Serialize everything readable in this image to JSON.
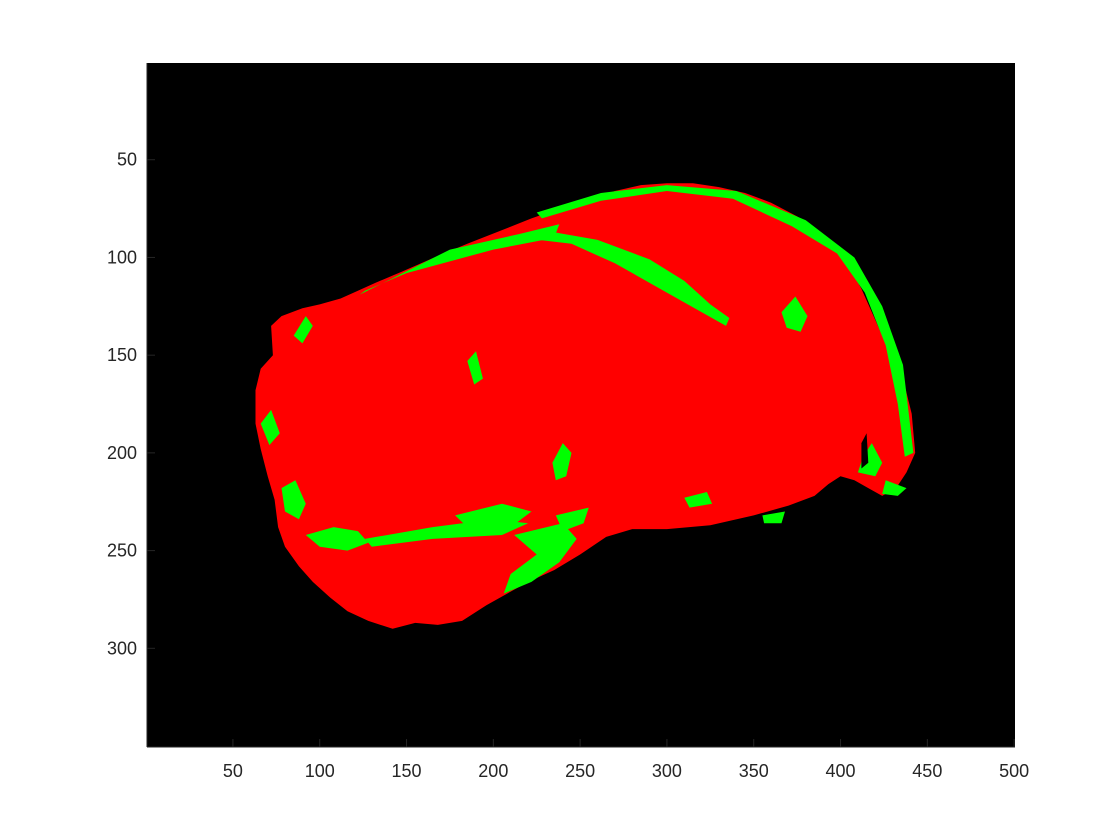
{
  "chart_data": {
    "type": "heatmap",
    "title": "",
    "xlabel": "",
    "ylabel": "",
    "xlim": [
      0.5,
      500.5
    ],
    "ylim": [
      0.5,
      350.5
    ],
    "y_reversed": true,
    "grid": false,
    "x_ticks": [
      50,
      100,
      150,
      200,
      250,
      300,
      350,
      400,
      450,
      500
    ],
    "x_tick_labels": [
      "50",
      "100",
      "150",
      "200",
      "250",
      "300",
      "350",
      "400",
      "450",
      "500"
    ],
    "y_ticks": [
      50,
      100,
      150,
      200,
      250,
      300
    ],
    "y_tick_labels": [
      "50",
      "100",
      "150",
      "200",
      "250",
      "300"
    ],
    "classes": [
      {
        "id": "background",
        "color": "#000000"
      },
      {
        "id": "lean",
        "color": "#ff0000"
      },
      {
        "id": "fat",
        "color": "#00ff00"
      }
    ],
    "regions": {
      "lean_outline": [
        [
          63,
          168
        ],
        [
          66,
          157
        ],
        [
          73,
          150
        ],
        [
          72,
          135
        ],
        [
          78,
          130
        ],
        [
          90,
          126
        ],
        [
          100,
          124
        ],
        [
          112,
          121
        ],
        [
          122,
          117
        ],
        [
          132,
          113
        ],
        [
          148,
          107
        ],
        [
          166,
          100
        ],
        [
          185,
          93
        ],
        [
          205,
          86
        ],
        [
          222,
          80
        ],
        [
          238,
          75
        ],
        [
          255,
          70
        ],
        [
          270,
          66
        ],
        [
          285,
          63
        ],
        [
          300,
          62
        ],
        [
          315,
          62
        ],
        [
          330,
          64
        ],
        [
          345,
          67
        ],
        [
          360,
          72
        ],
        [
          375,
          79
        ],
        [
          390,
          88
        ],
        [
          402,
          100
        ],
        [
          412,
          116
        ],
        [
          420,
          132
        ],
        [
          428,
          148
        ],
        [
          436,
          162
        ],
        [
          441,
          180
        ],
        [
          443,
          200
        ],
        [
          438,
          210
        ],
        [
          432,
          218
        ],
        [
          424,
          222
        ],
        [
          416,
          218
        ],
        [
          408,
          214
        ],
        [
          400,
          212
        ],
        [
          393,
          216
        ],
        [
          385,
          222
        ],
        [
          370,
          227
        ],
        [
          350,
          232
        ],
        [
          325,
          237
        ],
        [
          300,
          239
        ],
        [
          280,
          239
        ],
        [
          265,
          243
        ],
        [
          250,
          252
        ],
        [
          235,
          260
        ],
        [
          220,
          266
        ],
        [
          208,
          272
        ],
        [
          196,
          278
        ],
        [
          182,
          286
        ],
        [
          168,
          288
        ],
        [
          155,
          287
        ],
        [
          142,
          290
        ],
        [
          128,
          286
        ],
        [
          116,
          281
        ],
        [
          106,
          274
        ],
        [
          96,
          266
        ],
        [
          88,
          258
        ],
        [
          80,
          248
        ],
        [
          76,
          238
        ],
        [
          74,
          224
        ],
        [
          70,
          212
        ],
        [
          66,
          198
        ],
        [
          63,
          185
        ]
      ],
      "fat_regions": [
        [
          [
            123,
            119
          ],
          [
            175,
            96
          ],
          [
            215,
            88
          ],
          [
            238,
            83
          ],
          [
            235,
            90
          ],
          [
            200,
            96
          ],
          [
            150,
            108
          ],
          [
            126,
            117
          ]
        ],
        [
          [
            228,
            86
          ],
          [
            260,
            91
          ],
          [
            290,
            101
          ],
          [
            310,
            112
          ],
          [
            325,
            124
          ],
          [
            336,
            131
          ],
          [
            334,
            135
          ],
          [
            318,
            127
          ],
          [
            296,
            116
          ],
          [
            270,
            103
          ],
          [
            245,
            93
          ],
          [
            226,
            91
          ]
        ],
        [
          [
            225,
            77
          ],
          [
            262,
            67
          ],
          [
            300,
            63
          ],
          [
            340,
            66
          ],
          [
            380,
            81
          ],
          [
            408,
            100
          ],
          [
            424,
            125
          ],
          [
            436,
            155
          ],
          [
            442,
            200
          ],
          [
            437,
            202
          ],
          [
            433,
            175
          ],
          [
            426,
            145
          ],
          [
            414,
            118
          ],
          [
            398,
            98
          ],
          [
            372,
            84
          ],
          [
            338,
            70
          ],
          [
            300,
            66
          ],
          [
            262,
            71
          ],
          [
            228,
            80
          ]
        ],
        [
          [
            413,
            202
          ],
          [
            418,
            195
          ],
          [
            424,
            205
          ],
          [
            420,
            212
          ],
          [
            410,
            210
          ]
        ],
        [
          [
            426,
            214
          ],
          [
            438,
            218
          ],
          [
            433,
            222
          ],
          [
            424,
            221
          ]
        ],
        [
          [
            78,
            218
          ],
          [
            86,
            214
          ],
          [
            92,
            226
          ],
          [
            88,
            234
          ],
          [
            80,
            230
          ]
        ],
        [
          [
            92,
            242
          ],
          [
            108,
            238
          ],
          [
            122,
            240
          ],
          [
            128,
            246
          ],
          [
            116,
            250
          ],
          [
            100,
            248
          ]
        ],
        [
          [
            126,
            244
          ],
          [
            165,
            238
          ],
          [
            200,
            234
          ],
          [
            220,
            236
          ],
          [
            205,
            242
          ],
          [
            165,
            244
          ],
          [
            130,
            248
          ]
        ],
        [
          [
            178,
            232
          ],
          [
            205,
            226
          ],
          [
            222,
            230
          ],
          [
            210,
            238
          ],
          [
            185,
            238
          ]
        ],
        [
          [
            212,
            242
          ],
          [
            240,
            236
          ],
          [
            248,
            244
          ],
          [
            238,
            256
          ],
          [
            222,
            266
          ],
          [
            206,
            272
          ],
          [
            210,
            262
          ],
          [
            225,
            252
          ]
        ],
        [
          [
            236,
            232
          ],
          [
            255,
            228
          ],
          [
            252,
            236
          ],
          [
            240,
            240
          ]
        ],
        [
          [
            234,
            205
          ],
          [
            240,
            195
          ],
          [
            245,
            200
          ],
          [
            242,
            212
          ],
          [
            236,
            214
          ]
        ],
        [
          [
            185,
            153
          ],
          [
            190,
            148
          ],
          [
            194,
            162
          ],
          [
            189,
            165
          ]
        ],
        [
          [
            85,
            140
          ],
          [
            92,
            130
          ],
          [
            96,
            135
          ],
          [
            90,
            144
          ]
        ],
        [
          [
            66,
            185
          ],
          [
            72,
            178
          ],
          [
            77,
            190
          ],
          [
            71,
            196
          ]
        ],
        [
          [
            366,
            128
          ],
          [
            374,
            120
          ],
          [
            381,
            130
          ],
          [
            377,
            138
          ],
          [
            369,
            136
          ]
        ],
        [
          [
            310,
            223
          ],
          [
            323,
            220
          ],
          [
            326,
            226
          ],
          [
            313,
            228
          ]
        ],
        [
          [
            355,
            232
          ],
          [
            368,
            230
          ],
          [
            366,
            236
          ],
          [
            356,
            236
          ]
        ]
      ],
      "background_holes": [
        [
          [
            412,
            195
          ],
          [
            415,
            190
          ],
          [
            416,
            205
          ],
          [
            412,
            208
          ]
        ]
      ]
    }
  }
}
